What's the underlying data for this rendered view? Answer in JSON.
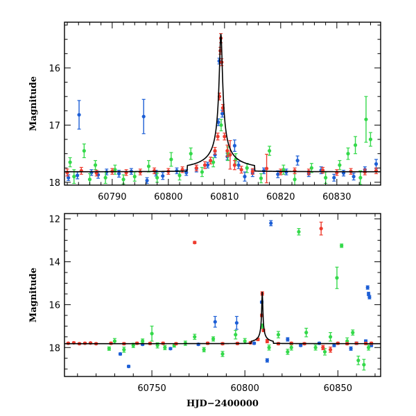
{
  "chart_data": [
    {
      "type": "scatter",
      "title": "",
      "xlabel": "",
      "ylabel": "Magnitude",
      "xlim": [
        60781.5,
        60837.8
      ],
      "ylim": [
        18.05,
        15.2
      ],
      "y_inverted": true,
      "grid": false,
      "x_ticks": [
        60790,
        60800,
        60810,
        60820,
        60830
      ],
      "y_ticks": [
        16,
        17,
        18
      ],
      "colors": {
        "blue": "#1d5fd6",
        "green": "#34d94a",
        "red": "#ee3b2e",
        "model": "#000000"
      },
      "baseline_magnitude": 17.82,
      "series": [
        {
          "color": "blue",
          "points": [
            [
              60782.2,
              17.92,
              0.05
            ],
            [
              60783.8,
              17.88,
              0.06
            ],
            [
              60784.1,
              16.82,
              0.25
            ],
            [
              60786.3,
              17.83,
              0.05
            ],
            [
              60787.5,
              17.87,
              0.06
            ],
            [
              60789.0,
              17.82,
              0.05
            ],
            [
              60791.2,
              17.85,
              0.06
            ],
            [
              60793.4,
              17.81,
              0.05
            ],
            [
              60795.6,
              16.85,
              0.3
            ],
            [
              60796.2,
              17.97,
              0.05
            ],
            [
              60797.8,
              17.84,
              0.05
            ],
            [
              60799.0,
              17.89,
              0.06
            ],
            [
              60801.5,
              17.8,
              0.05
            ],
            [
              60803.2,
              17.83,
              0.05
            ],
            [
              60805.0,
              17.76,
              0.06
            ],
            [
              60807.0,
              17.7,
              0.05
            ],
            [
              60808.3,
              17.52,
              0.05
            ],
            [
              60808.9,
              16.95,
              0.06
            ],
            [
              60809.05,
              15.88,
              0.05
            ],
            [
              60809.6,
              16.8,
              0.06
            ],
            [
              60810.5,
              17.55,
              0.06
            ],
            [
              60811.8,
              17.36,
              0.1
            ],
            [
              60812.5,
              17.7,
              0.06
            ],
            [
              60813.6,
              17.9,
              0.08
            ],
            [
              60815.0,
              17.84,
              0.06
            ],
            [
              60817.0,
              17.8,
              0.05
            ],
            [
              60819.5,
              17.86,
              0.06
            ],
            [
              60821.0,
              17.82,
              0.05
            ],
            [
              60823.0,
              17.62,
              0.08
            ],
            [
              60825.0,
              17.85,
              0.05
            ],
            [
              60827.2,
              17.79,
              0.06
            ],
            [
              60829.5,
              17.92,
              0.06
            ],
            [
              60831.2,
              17.84,
              0.05
            ],
            [
              60833.0,
              17.9,
              0.06
            ],
            [
              60835.0,
              17.78,
              0.05
            ],
            [
              60837.0,
              17.68,
              0.08
            ]
          ]
        },
        {
          "color": "green",
          "points": [
            [
              60782.5,
              17.65,
              0.08
            ],
            [
              60783.2,
              17.9,
              0.12
            ],
            [
              60785.0,
              17.45,
              0.12
            ],
            [
              60786.0,
              17.95,
              0.1
            ],
            [
              60787.0,
              17.7,
              0.08
            ],
            [
              60788.8,
              17.92,
              0.1
            ],
            [
              60790.5,
              17.78,
              0.08
            ],
            [
              60792.0,
              17.95,
              0.08
            ],
            [
              60794.0,
              17.9,
              0.08
            ],
            [
              60796.5,
              17.72,
              0.1
            ],
            [
              60798.0,
              17.92,
              0.08
            ],
            [
              60800.5,
              17.6,
              0.12
            ],
            [
              60802.0,
              17.88,
              0.08
            ],
            [
              60804.0,
              17.5,
              0.1
            ],
            [
              60806.0,
              17.82,
              0.08
            ],
            [
              60808.0,
              17.65,
              0.08
            ],
            [
              60809.4,
              17.0,
              0.1
            ],
            [
              60810.6,
              17.5,
              0.12
            ],
            [
              60812.0,
              17.6,
              0.1
            ],
            [
              60814.0,
              17.75,
              0.08
            ],
            [
              60816.5,
              17.93,
              0.08
            ],
            [
              60818.0,
              17.45,
              0.08
            ],
            [
              60820.5,
              17.78,
              0.08
            ],
            [
              60822.5,
              17.95,
              0.1
            ],
            [
              60825.5,
              17.75,
              0.08
            ],
            [
              60828.0,
              17.92,
              0.1
            ],
            [
              60830.5,
              17.7,
              0.08
            ],
            [
              60832.0,
              17.5,
              0.1
            ],
            [
              60833.3,
              17.35,
              0.15
            ],
            [
              60834.2,
              17.92,
              0.12
            ],
            [
              60835.2,
              16.9,
              0.4
            ],
            [
              60836.0,
              17.25,
              0.12
            ]
          ]
        },
        {
          "color": "red",
          "points": [
            [
              60782.0,
              17.83,
              0.06
            ],
            [
              60784.5,
              17.8,
              0.06
            ],
            [
              60787.2,
              17.84,
              0.05
            ],
            [
              60790.0,
              17.81,
              0.05
            ],
            [
              60792.5,
              17.83,
              0.05
            ],
            [
              60795.0,
              17.82,
              0.05
            ],
            [
              60797.5,
              17.8,
              0.05
            ],
            [
              60800.0,
              17.81,
              0.05
            ],
            [
              60802.5,
              17.78,
              0.05
            ],
            [
              60805.0,
              17.75,
              0.05
            ],
            [
              60806.5,
              17.7,
              0.06
            ],
            [
              60807.5,
              17.62,
              0.06
            ],
            [
              60808.3,
              17.45,
              0.06
            ],
            [
              60808.8,
              17.2,
              0.06
            ],
            [
              60809.1,
              16.5,
              0.06
            ],
            [
              60809.25,
              15.7,
              0.06
            ],
            [
              60809.35,
              15.48,
              0.08
            ],
            [
              60809.5,
              15.9,
              0.06
            ],
            [
              60809.7,
              16.7,
              0.06
            ],
            [
              60810.0,
              17.2,
              0.06
            ],
            [
              60810.5,
              17.45,
              0.1
            ],
            [
              60811.0,
              17.52,
              0.25
            ],
            [
              60811.8,
              17.7,
              0.08
            ],
            [
              60813.0,
              17.78,
              0.06
            ],
            [
              60815.0,
              17.81,
              0.05
            ],
            [
              60817.5,
              17.76,
              0.25
            ],
            [
              60820.0,
              17.82,
              0.05
            ],
            [
              60822.5,
              17.8,
              0.05
            ],
            [
              60825.0,
              17.82,
              0.05
            ],
            [
              60827.5,
              17.79,
              0.05
            ],
            [
              60830.0,
              17.83,
              0.05
            ],
            [
              60832.5,
              17.81,
              0.05
            ],
            [
              60835.0,
              17.82,
              0.05
            ],
            [
              60837.0,
              17.8,
              0.05
            ]
          ]
        }
      ]
    },
    {
      "type": "scatter",
      "title": "",
      "xlabel": "HJD−2400000",
      "ylabel": "Magnitude",
      "xlim": [
        60703,
        60873
      ],
      "ylim": [
        19.35,
        11.75
      ],
      "y_inverted": true,
      "grid": false,
      "x_ticks": [
        60750,
        60800,
        60850
      ],
      "y_ticks": [
        12,
        14,
        16,
        18
      ],
      "colors": {
        "blue": "#1d5fd6",
        "green": "#34d94a",
        "red": "#ee3b2e",
        "model": "#000000"
      },
      "baseline_magnitude": 17.82,
      "series": [
        {
          "color": "blue",
          "points": [
            [
              60733.0,
              18.3,
              0.05
            ],
            [
              60737.5,
              18.88,
              0.05
            ],
            [
              60745.0,
              17.85,
              0.05
            ],
            [
              60760.0,
              18.05,
              0.05
            ],
            [
              60775.0,
              17.85,
              0.05
            ],
            [
              60784.0,
              16.8,
              0.25
            ],
            [
              60795.6,
              16.85,
              0.3
            ],
            [
              60805.0,
              17.8,
              0.05
            ],
            [
              60809.05,
              15.88,
              0.05
            ],
            [
              60812.0,
              18.6,
              0.08
            ],
            [
              60814.0,
              12.2,
              0.12
            ],
            [
              60823.0,
              17.62,
              0.08
            ],
            [
              60830.0,
              17.9,
              0.05
            ],
            [
              60840.0,
              17.8,
              0.05
            ],
            [
              60848.0,
              17.9,
              0.06
            ],
            [
              60857.0,
              18.05,
              0.08
            ],
            [
              60860.0,
              17.8,
              0.06
            ],
            [
              60865.0,
              17.7,
              0.06
            ],
            [
              60866.0,
              15.2,
              0.08
            ],
            [
              60866.5,
              15.5,
              0.08
            ],
            [
              60867.0,
              15.65,
              0.08
            ],
            [
              60868.0,
              17.9,
              0.06
            ]
          ]
        },
        {
          "color": "green",
          "points": [
            [
              60727.0,
              18.05,
              0.08
            ],
            [
              60730.0,
              17.7,
              0.12
            ],
            [
              60735.0,
              18.1,
              0.12
            ],
            [
              60740.0,
              17.9,
              0.1
            ],
            [
              60745.0,
              17.7,
              0.1
            ],
            [
              60750.0,
              17.35,
              0.35
            ],
            [
              60753.0,
              17.9,
              0.12
            ],
            [
              60757.0,
              18.0,
              0.1
            ],
            [
              60762.0,
              17.9,
              0.08
            ],
            [
              60768.0,
              17.8,
              0.1
            ],
            [
              60773.0,
              17.5,
              0.12
            ],
            [
              60778.0,
              18.1,
              0.1
            ],
            [
              60783.0,
              17.6,
              0.1
            ],
            [
              60788.0,
              18.3,
              0.12
            ],
            [
              60795.0,
              17.4,
              0.2
            ],
            [
              60800.0,
              17.7,
              0.12
            ],
            [
              60809.4,
              17.0,
              0.1
            ],
            [
              60813.0,
              18.0,
              0.12
            ],
            [
              60818.0,
              17.4,
              0.15
            ],
            [
              60823.0,
              18.2,
              0.12
            ],
            [
              60825.0,
              18.0,
              0.12
            ],
            [
              60829.0,
              12.6,
              0.15
            ],
            [
              60833.0,
              17.3,
              0.2
            ],
            [
              60838.0,
              18.0,
              0.12
            ],
            [
              60843.0,
              18.2,
              0.15
            ],
            [
              60846.0,
              17.5,
              0.2
            ],
            [
              60849.5,
              14.75,
              0.5
            ],
            [
              60852.0,
              13.25,
              0.08
            ],
            [
              60855.0,
              17.7,
              0.15
            ],
            [
              60858.0,
              17.3,
              0.12
            ],
            [
              60861.0,
              18.6,
              0.2
            ],
            [
              60864.0,
              18.8,
              0.25
            ],
            [
              60866.5,
              18.0,
              0.12
            ]
          ]
        },
        {
          "color": "red",
          "points": [
            [
              60705.0,
              17.8,
              0.04
            ],
            [
              60708.0,
              17.78,
              0.04
            ],
            [
              60711.0,
              17.82,
              0.04
            ],
            [
              60714.0,
              17.8,
              0.04
            ],
            [
              60717.0,
              17.79,
              0.04
            ],
            [
              60720.0,
              17.82,
              0.04
            ],
            [
              60728.0,
              17.8,
              0.05
            ],
            [
              60735.0,
              17.82,
              0.05
            ],
            [
              60742.0,
              17.8,
              0.05
            ],
            [
              60749.0,
              17.81,
              0.05
            ],
            [
              60756.0,
              17.8,
              0.05
            ],
            [
              60763.0,
              17.82,
              0.05
            ],
            [
              60773.0,
              13.1,
              0.05
            ],
            [
              60780.0,
              17.8,
              0.05
            ],
            [
              60788.0,
              17.82,
              0.05
            ],
            [
              60796.0,
              17.81,
              0.05
            ],
            [
              60803.0,
              17.78,
              0.05
            ],
            [
              60807.0,
              17.62,
              0.06
            ],
            [
              60809.1,
              16.5,
              0.06
            ],
            [
              60809.35,
              15.48,
              0.08
            ],
            [
              60810.0,
              17.2,
              0.06
            ],
            [
              60812.0,
              17.7,
              0.08
            ],
            [
              60818.0,
              17.82,
              0.05
            ],
            [
              60825.0,
              17.8,
              0.05
            ],
            [
              60832.0,
              17.82,
              0.05
            ],
            [
              60841.0,
              12.45,
              0.3
            ],
            [
              60842.0,
              18.0,
              0.1
            ],
            [
              60846.0,
              18.1,
              0.12
            ],
            [
              60850.0,
              17.8,
              0.05
            ],
            [
              60855.0,
              17.82,
              0.05
            ],
            [
              60860.0,
              17.8,
              0.05
            ],
            [
              60865.0,
              17.81,
              0.05
            ],
            [
              60868.0,
              17.8,
              0.05
            ]
          ]
        }
      ]
    }
  ]
}
